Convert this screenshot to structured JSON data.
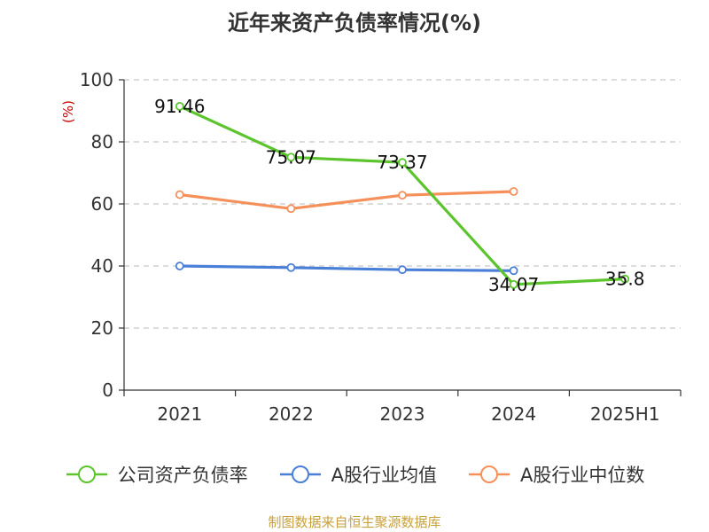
{
  "chart_data": {
    "type": "line",
    "title": "近年来资产负债率情况(%)",
    "ylabel": "(%)",
    "xlabel": "",
    "categories": [
      "2021",
      "2022",
      "2023",
      "2024",
      "2025H1"
    ],
    "ylim": [
      0,
      100
    ],
    "yticks": [
      0,
      20,
      40,
      60,
      80,
      100
    ],
    "grid": true,
    "legend_position": "bottom",
    "series": [
      {
        "name": "公司资产负债率",
        "color": "#5cc42c",
        "values": [
          91.46,
          75.07,
          73.37,
          34.07,
          35.8
        ],
        "labels": [
          "91.46",
          "75.07",
          "73.37",
          "34.07",
          "35.8"
        ]
      },
      {
        "name": "A股行业均值",
        "color": "#4a7fd8",
        "values": [
          40.0,
          39.5,
          38.8,
          38.5,
          null
        ]
      },
      {
        "name": "A股行业中位数",
        "color": "#f5905a",
        "values": [
          63.0,
          58.5,
          62.8,
          64.0,
          null
        ]
      }
    ]
  },
  "footer": {
    "source": "制图数据来自恒生聚源数据库"
  }
}
